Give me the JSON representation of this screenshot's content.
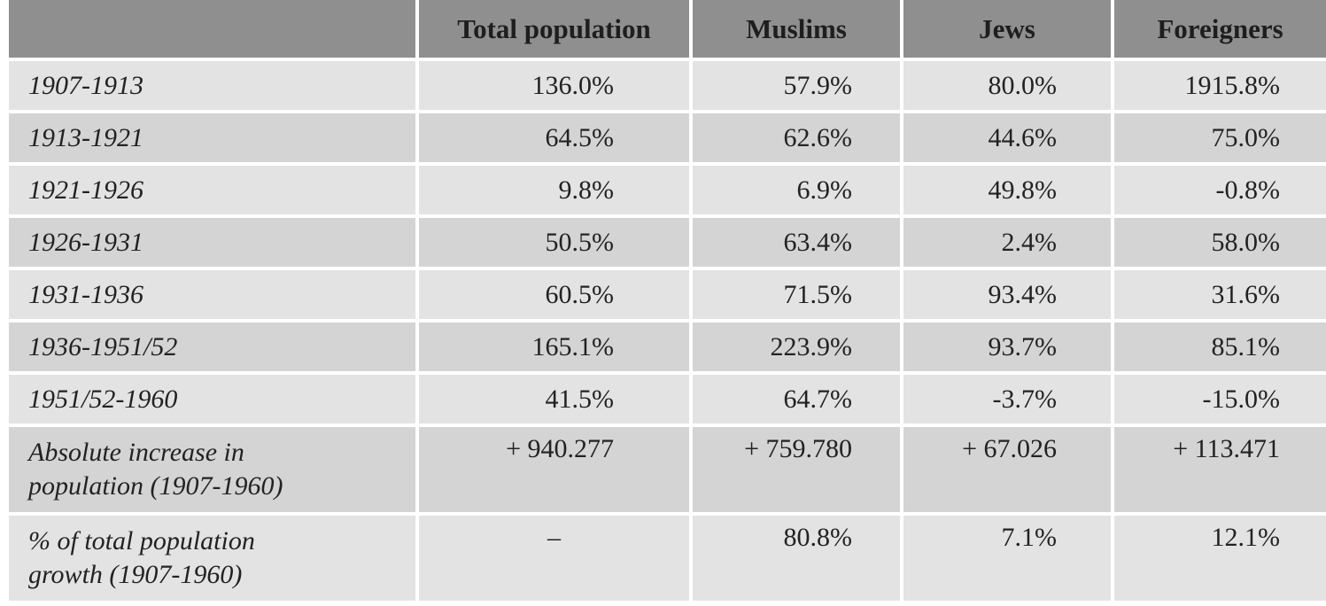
{
  "table": {
    "headers": [
      "",
      "Total population",
      "Muslims",
      "Jews",
      "Foreigners"
    ],
    "rows": [
      {
        "label": "1907-1913",
        "total": "136.0%",
        "muslims": "57.9%",
        "jews": "80.0%",
        "foreigners": "1915.8%"
      },
      {
        "label": "1913-1921",
        "total": "64.5%",
        "muslims": "62.6%",
        "jews": "44.6%",
        "foreigners": "75.0%"
      },
      {
        "label": "1921-1926",
        "total": "9.8%",
        "muslims": "6.9%",
        "jews": "49.8%",
        "foreigners": "-0.8%"
      },
      {
        "label": "1926-1931",
        "total": "50.5%",
        "muslims": "63.4%",
        "jews": "2.4%",
        "foreigners": "58.0%"
      },
      {
        "label": "1931-1936",
        "total": "60.5%",
        "muslims": "71.5%",
        "jews": "93.4%",
        "foreigners": "31.6%"
      },
      {
        "label": "1936-1951/52",
        "total": "165.1%",
        "muslims": "223.9%",
        "jews": "93.7%",
        "foreigners": "85.1%"
      },
      {
        "label": "1951/52-1960",
        "total": "41.5%",
        "muslims": "64.7%",
        "jews": "-3.7%",
        "foreigners": "-15.0%"
      }
    ],
    "absolute": {
      "label_line1": "Absolute increase in",
      "label_line2": "population (1907-1960)",
      "total": "+ 940.277",
      "muslims": "+ 759.780",
      "jews": "+ 67.026",
      "foreigners": "+ 113.471"
    },
    "share": {
      "label_line1": "% of total population",
      "label_line2": "growth (1907-1960)",
      "total": "–",
      "muslims": "80.8%",
      "jews": "7.1%",
      "foreigners": "12.1%"
    }
  }
}
